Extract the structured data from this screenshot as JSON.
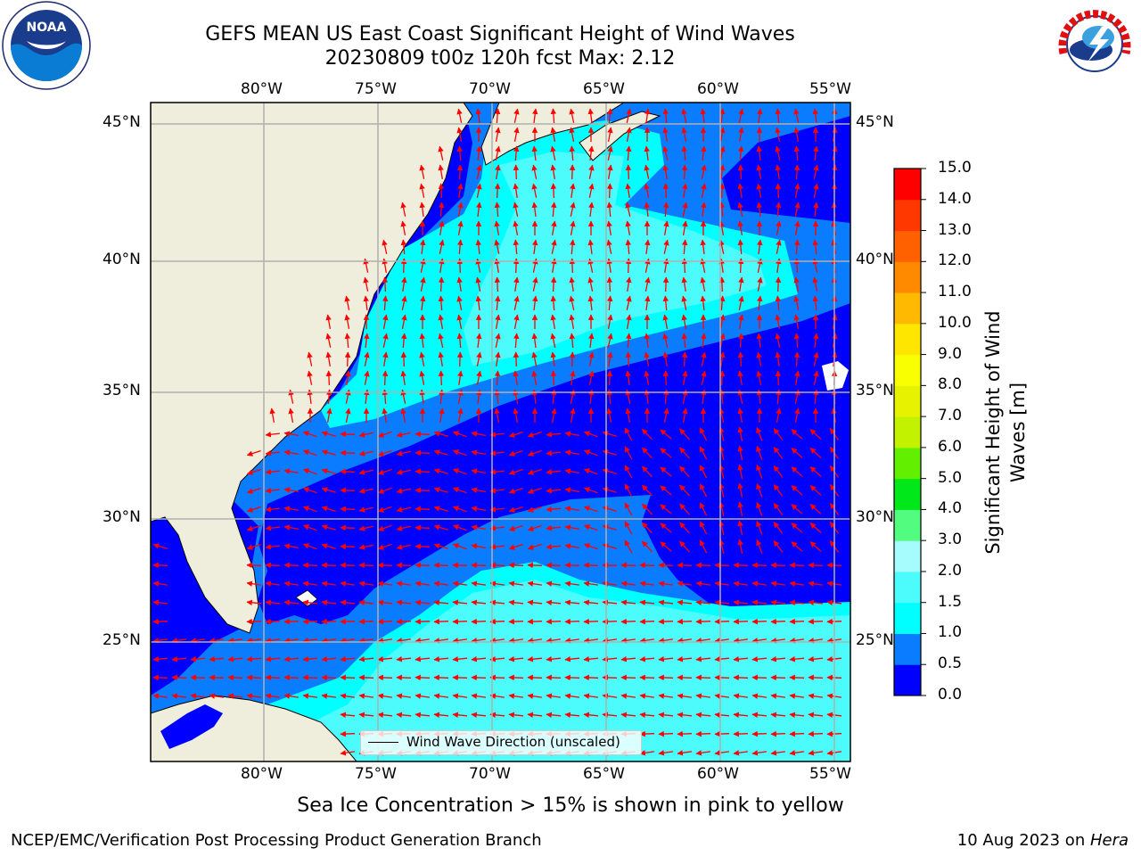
{
  "title": {
    "line1": "GEFS MEAN US East Coast Significant Height of Wind Waves",
    "line2": "20230809 t00z 120h fcst   Max: 2.12"
  },
  "logos": {
    "left": {
      "name": "noaa-logo",
      "text": "NOAA"
    },
    "right": {
      "name": "nws-logo",
      "text": "NATIONAL WEATHER SERVICE"
    }
  },
  "map": {
    "lon_labels": [
      "80°W",
      "75°W",
      "70°W",
      "65°W",
      "60°W",
      "55°W"
    ],
    "lat_labels": [
      "45°N",
      "40°N",
      "35°N",
      "30°N",
      "25°N"
    ],
    "legend_label": "Wind Wave Direction (unscaled)",
    "land_color": "#efeedc",
    "arrow_color": "#ff0000",
    "grid_color": "#b0b0b0"
  },
  "colorbar": {
    "label": "Significant Height of Wind Waves [m]",
    "ticks": [
      "0.0",
      "0.5",
      "1.0",
      "1.5",
      "2.0",
      "3.0",
      "4.0",
      "5.0",
      "6.0",
      "7.0",
      "8.0",
      "9.0",
      "10.0",
      "11.0",
      "12.0",
      "13.0",
      "14.0",
      "15.0"
    ],
    "colors": [
      "#0000ff",
      "#0a7cff",
      "#00ffff",
      "#4cfcfc",
      "#a6fcfc",
      "#52fc7e",
      "#00e81a",
      "#62f000",
      "#c2f200",
      "#e6f200",
      "#faff00",
      "#ffe600",
      "#ffba00",
      "#ff8a00",
      "#ff6000",
      "#ff3800",
      "#ff0000"
    ]
  },
  "note": "Sea Ice Concentration > 15% is shown in pink to yellow",
  "footer": {
    "left": "NCEP/EMC/Verification Post Processing Product Generation Branch",
    "right_date": "10 Aug 2023 on ",
    "right_machine": "Hera"
  }
}
